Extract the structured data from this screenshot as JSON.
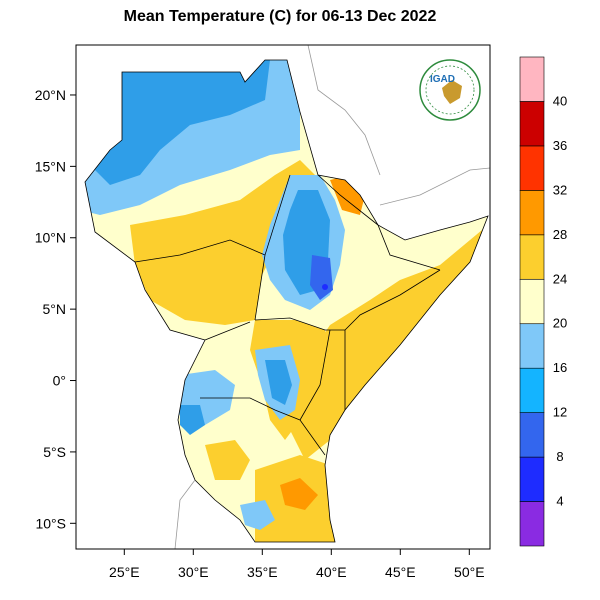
{
  "title": "Mean Temperature (C) for 06-13 Dec 2022",
  "logo": {
    "text": "IGAD",
    "colors": {
      "ring": "#2e8b3d",
      "text": "#1f6fb5",
      "map": "#c99a2e"
    }
  },
  "chart_data": {
    "type": "heatmap",
    "title": "Mean Temperature (C) for 06-13 Dec 2022",
    "x_axis": {
      "range": [
        21.5,
        51.5
      ],
      "ticks": [
        25,
        30,
        35,
        40,
        45,
        50
      ],
      "tick_labels": [
        "25°E",
        "30°E",
        "35°E",
        "40°E",
        "45°E",
        "50°E"
      ]
    },
    "y_axis": {
      "range": [
        -11.8,
        23.5
      ],
      "ticks": [
        20,
        15,
        10,
        5,
        0,
        -5,
        -10
      ],
      "tick_labels": [
        "20°N",
        "15°N",
        "10°N",
        "5°N",
        "0°",
        "5°S",
        "10°S"
      ]
    },
    "colorbar": {
      "boundaries": [
        4,
        8,
        12,
        16,
        20,
        24,
        28,
        32,
        36,
        40
      ],
      "labels": [
        "4",
        "8",
        "12",
        "16",
        "20",
        "24",
        "28",
        "32",
        "36",
        "40"
      ],
      "colors": [
        "#8a2be2",
        "#1e2cff",
        "#3366ee",
        "#14b4ff",
        "#7fc8f8",
        "#ffffcc",
        "#fccf2e",
        "#ff9900",
        "#ff3300",
        "#cc0000",
        "#ffb6c1"
      ]
    }
  }
}
